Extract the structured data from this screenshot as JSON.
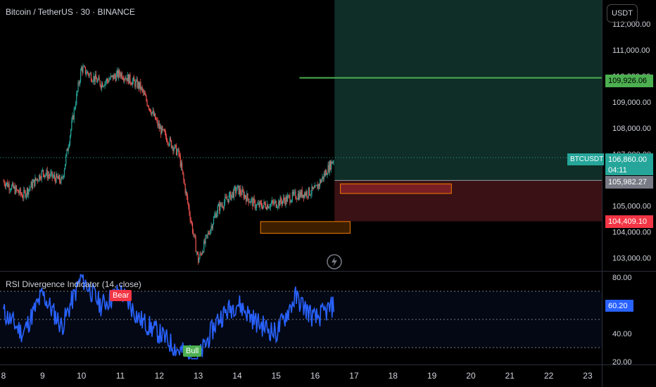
{
  "header": {
    "title": "Bitcoin / TetherUS · 30 · BINANCE",
    "currency": "USDT"
  },
  "chart_data": [
    {
      "type": "line",
      "title": "Bitcoin / TetherUS · 30 · BINANCE",
      "subtitle": "candlestick price chart",
      "ylim": [
        102500,
        112300
      ],
      "y_ticks": [
        "103,000.00",
        "104,000.00",
        "105,000.00",
        "106,000.00",
        "107,000.00",
        "108,000.00",
        "109,000.00",
        "110,000.00",
        "111,000.00",
        "112,000.00"
      ],
      "x_ticks": [
        "8",
        "9",
        "10",
        "11",
        "12",
        "13",
        "14",
        "15",
        "16",
        "17",
        "18",
        "19",
        "20",
        "21",
        "22",
        "23"
      ],
      "x_values": [
        8,
        8.5,
        9,
        9.5,
        10,
        10.5,
        11,
        11.5,
        12,
        12.5,
        13,
        13.5,
        14,
        14.5,
        15,
        15.5,
        16,
        16.5
      ],
      "close_values": [
        105950,
        105400,
        106300,
        105950,
        110300,
        109700,
        110100,
        109600,
        108000,
        107000,
        102900,
        104900,
        105650,
        105000,
        105100,
        105400,
        105600,
        106860
      ],
      "price_labels": {
        "symbol": "BTCUSDT",
        "last_price": "106,860.00",
        "countdown": "04:11",
        "target": "109,926.06",
        "entry": "105,982.27",
        "stop": "104,409.10"
      },
      "levels": {
        "target": 109926.06,
        "entry": 105982.27,
        "stop": 104409.1
      }
    },
    {
      "type": "line",
      "title": "RSI Divergence Indicator (14, close)",
      "ylim": [
        18,
        84
      ],
      "y_ticks": [
        "20.00",
        "40.00",
        "60.20",
        "80.00"
      ],
      "current_value": "60.20",
      "bands": [
        30,
        50,
        70
      ],
      "x_values": [
        8,
        8.5,
        9,
        9.5,
        10,
        10.5,
        11,
        11.5,
        12,
        12.5,
        13,
        13.5,
        14,
        14.5,
        15,
        15.5,
        16,
        16.5
      ],
      "values": [
        55,
        40,
        68,
        45,
        80,
        60,
        70,
        50,
        40,
        28,
        22,
        50,
        62,
        48,
        40,
        66,
        50,
        60.2
      ],
      "annotations": [
        "Bear",
        "Bull"
      ]
    }
  ],
  "colors": {
    "up": "#26a69a",
    "down": "#ef5350",
    "target_line": "#4caf50",
    "rsi_line": "#2962ff",
    "profit_zone": "#0f2e27",
    "loss_zone": "#3a1114",
    "order_block": "#f57c00"
  },
  "icons": {
    "replay": "lightning-icon"
  }
}
